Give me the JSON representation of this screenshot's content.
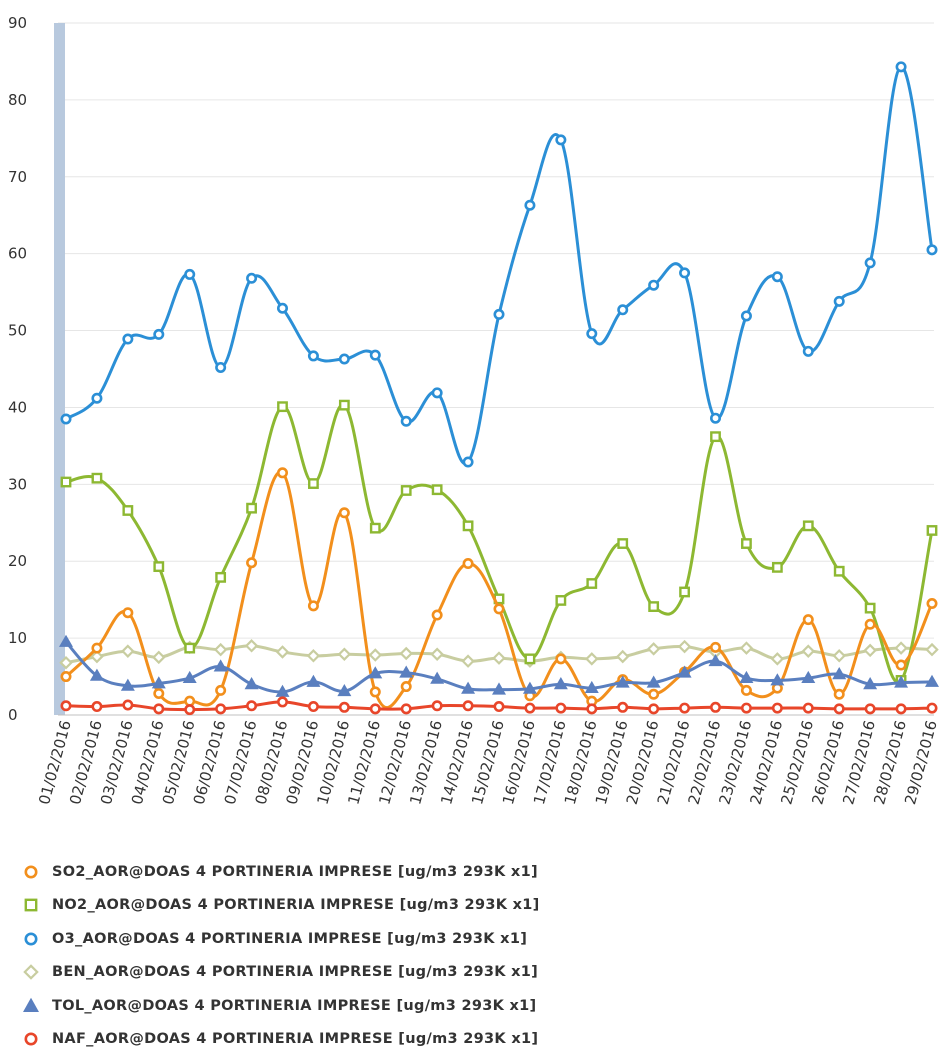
{
  "chart_data": {
    "type": "line",
    "ylim": [
      0,
      90
    ],
    "yticks": [
      "0",
      "10",
      "20",
      "30",
      "40",
      "50",
      "60",
      "70",
      "80",
      "90"
    ],
    "categories": [
      "01/02/2016",
      "02/02/2016",
      "03/02/2016",
      "04/02/2016",
      "05/02/2016",
      "06/02/2016",
      "07/02/2016",
      "08/02/2016",
      "09/02/2016",
      "10/02/2016",
      "11/02/2016",
      "12/02/2016",
      "13/02/2016",
      "14/02/2016",
      "15/02/2016",
      "16/02/2016",
      "17/02/2016",
      "18/02/2016",
      "19/02/2016",
      "20/02/2016",
      "21/02/2016",
      "22/02/2016",
      "23/02/2016",
      "24/02/2016",
      "25/02/2016",
      "26/02/2016",
      "27/02/2016",
      "28/02/2016",
      "29/02/2016"
    ],
    "series": [
      {
        "name": "SO2_AOR@DOAS 4 PORTINERIA IMPRESE [ug/m3 293K x1]",
        "color": "#f28f1c",
        "marker": "circle",
        "values": [
          5,
          8.7,
          13.3,
          2.8,
          1.8,
          3.2,
          19.8,
          31.5,
          14.2,
          26.3,
          3,
          3.7,
          13,
          19.7,
          13.8,
          2.5,
          7.3,
          1.8,
          4.6,
          2.7,
          5.6,
          8.8,
          3.2,
          3.5,
          12.4,
          2.7,
          11.8,
          6.5,
          14.5
        ]
      },
      {
        "name": "NO2_AOR@DOAS 4 PORTINERIA IMPRESE [ug/m3 293K x1]",
        "color": "#8db832",
        "marker": "square",
        "values": [
          30.3,
          30.8,
          26.6,
          19.3,
          8.7,
          17.9,
          26.9,
          40.1,
          30.1,
          40.3,
          24.3,
          29.2,
          29.3,
          24.6,
          15.1,
          7.3,
          14.9,
          17.1,
          22.3,
          14.1,
          16,
          36.2,
          22.3,
          19.2,
          24.6,
          18.7,
          13.9,
          4.5,
          24
        ]
      },
      {
        "name": "O3_AOR@DOAS 4 PORTINERIA IMPRESE [ug/m3 293K x1]",
        "color": "#2b8fd6",
        "marker": "circle",
        "values": [
          38.5,
          41.2,
          48.9,
          49.5,
          57.3,
          45.2,
          56.8,
          52.9,
          46.7,
          46.3,
          46.8,
          38.2,
          41.9,
          32.9,
          52.1,
          66.3,
          74.8,
          49.6,
          52.7,
          55.9,
          57.5,
          38.6,
          51.9,
          57,
          47.3,
          53.8,
          58.8,
          84.3,
          60.5
        ]
      },
      {
        "name": "BEN_AOR@DOAS 4 PORTINERIA IMPRESE [ug/m3 293K x1]",
        "color": "#c8cda0",
        "marker": "diamond",
        "values": [
          6.8,
          7.6,
          8.3,
          7.5,
          8.8,
          8.5,
          9,
          8.2,
          7.7,
          7.9,
          7.8,
          8,
          7.9,
          7,
          7.4,
          7,
          7.5,
          7.3,
          7.6,
          8.6,
          8.9,
          8.2,
          8.7,
          7.3,
          8.3,
          7.7,
          8.4,
          8.7,
          8.5
        ]
      },
      {
        "name": "TOL_AOR@DOAS 4 PORTINERIA IMPRESE [ug/m3 293K x1]",
        "color": "#5a7fbf",
        "marker": "triangle",
        "values": [
          9.5,
          5.1,
          3.8,
          4.1,
          4.8,
          6.3,
          4,
          3,
          4.3,
          3.1,
          5.4,
          5.5,
          4.7,
          3.4,
          3.3,
          3.4,
          4,
          3.5,
          4.2,
          4.2,
          5.5,
          7,
          4.8,
          4.5,
          4.8,
          5.3,
          4,
          4.2,
          4.3
        ]
      },
      {
        "name": "NAF_AOR@DOAS 4 PORTINERIA IMPRESE [ug/m3 293K x1]",
        "color": "#e8462a",
        "marker": "circle",
        "values": [
          1.2,
          1.1,
          1.3,
          0.8,
          0.7,
          0.8,
          1.2,
          1.7,
          1.1,
          1,
          0.8,
          0.8,
          1.2,
          1.2,
          1.1,
          0.9,
          0.9,
          0.8,
          1,
          0.8,
          0.9,
          1,
          0.9,
          0.9,
          0.9,
          0.8,
          0.8,
          0.8,
          0.9
        ]
      }
    ]
  }
}
